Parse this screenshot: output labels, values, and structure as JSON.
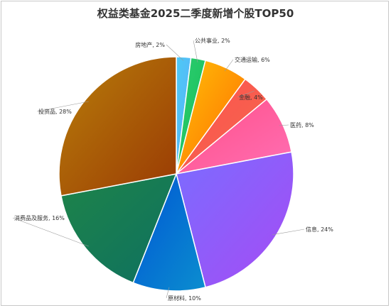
{
  "chart_data": {
    "type": "pie",
    "title": "权益类基金2025二季度新增个股TOP50",
    "slices": [
      {
        "name": "房地产",
        "value": 2,
        "label": "房地产, 2%",
        "color": "#4dc9f6",
        "color2": "#5ab0f8"
      },
      {
        "name": "公共事业",
        "value": 2,
        "label": "公共事业, 2%",
        "color": "#2ecc71",
        "color2": "#16c058"
      },
      {
        "name": "交通运输",
        "value": 6,
        "label": "交通运输, 6%",
        "color": "#ffc107",
        "color2": "#ff6a00"
      },
      {
        "name": "金融",
        "value": 4,
        "label": "金融, 4%",
        "color": "#ff5252",
        "color2": "#f2674a"
      },
      {
        "name": "医药",
        "value": 8,
        "label": "医药, 8%",
        "color": "#ff4f87",
        "color2": "#ff6fb4"
      },
      {
        "name": "信息",
        "value": 24,
        "label": "信息, 24%",
        "color": "#7b6cff",
        "color2": "#a64bf4"
      },
      {
        "name": "原材料",
        "value": 10,
        "label": "原材料, 10%",
        "color": "#0055d4",
        "color2": "#0b8ecf"
      },
      {
        "name": "消费品及服务",
        "value": 16,
        "label": "消费品及服务, 16%",
        "color": "#1e8449",
        "color2": "#0e7060"
      },
      {
        "name": "投资品",
        "value": 28,
        "label": "投资品, 28%",
        "color": "#b87e0a",
        "color2": "#9a3a04"
      }
    ]
  }
}
